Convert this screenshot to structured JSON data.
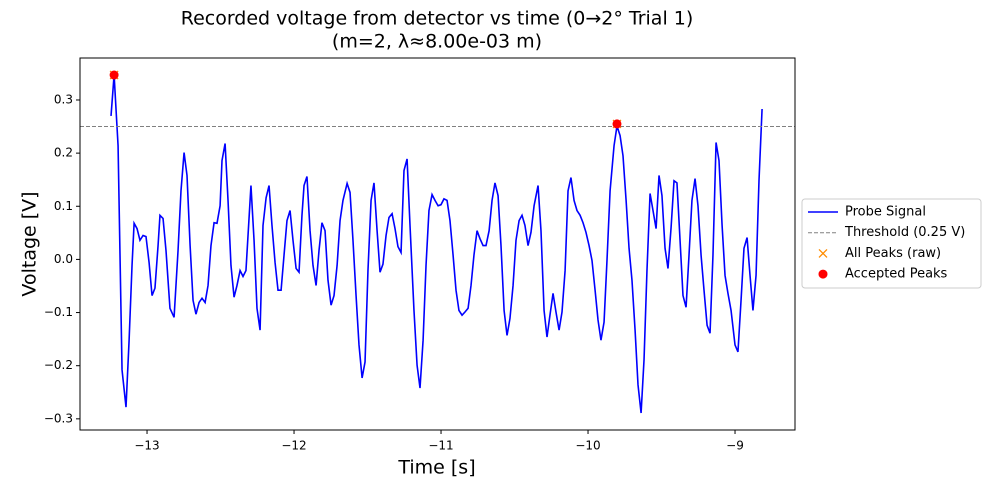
{
  "chart_data": {
    "type": "line",
    "title": [
      "Recorded voltage from detector vs time (0→2° Trial 1)",
      "(m=2, λ≈8.00e-03 m)"
    ],
    "xlabel": "Time [s]",
    "ylabel": "Voltage [V]",
    "xlim": [
      -13.456,
      -8.592
    ],
    "ylim": [
      -0.321,
      0.379
    ],
    "xticks": [
      {
        "value": -13,
        "label": "−13"
      },
      {
        "value": -12,
        "label": "−12"
      },
      {
        "value": -11,
        "label": "−11"
      },
      {
        "value": -10,
        "label": "−10"
      },
      {
        "value": -9,
        "label": "−9"
      }
    ],
    "yticks": [
      {
        "value": -0.3,
        "label": "−0.3"
      },
      {
        "value": -0.2,
        "label": "−0.2"
      },
      {
        "value": -0.1,
        "label": "−0.1"
      },
      {
        "value": 0.0,
        "label": "0.0"
      },
      0.1,
      0.2,
      0.3
    ],
    "legend": "right",
    "series": [
      {
        "name": "Probe Signal",
        "color": "#0000ff",
        "style": "line",
        "x": [
          -13.245,
          -13.224,
          -13.197,
          -13.17,
          -13.143,
          -13.122,
          -13.102,
          -13.088,
          -13.068,
          -13.048,
          -13.027,
          -13.007,
          -12.986,
          -12.966,
          -12.946,
          -12.925,
          -12.912,
          -12.891,
          -12.871,
          -12.844,
          -12.816,
          -12.789,
          -12.769,
          -12.748,
          -12.728,
          -12.707,
          -12.687,
          -12.667,
          -12.646,
          -12.626,
          -12.605,
          -12.585,
          -12.565,
          -12.544,
          -12.524,
          -12.503,
          -12.49,
          -12.469,
          -12.449,
          -12.429,
          -12.408,
          -12.388,
          -12.367,
          -12.347,
          -12.327,
          -12.293,
          -12.272,
          -12.252,
          -12.231,
          -12.211,
          -12.19,
          -12.17,
          -12.15,
          -12.129,
          -12.109,
          -12.088,
          -12.068,
          -12.048,
          -12.027,
          -12.007,
          -11.986,
          -11.966,
          -11.946,
          -11.932,
          -11.912,
          -11.891,
          -11.871,
          -11.85,
          -11.83,
          -11.81,
          -11.789,
          -11.769,
          -11.748,
          -11.728,
          -11.707,
          -11.687,
          -11.667,
          -11.639,
          -11.619,
          -11.599,
          -11.578,
          -11.558,
          -11.537,
          -11.517,
          -11.497,
          -11.476,
          -11.456,
          -11.435,
          -11.415,
          -11.395,
          -11.374,
          -11.354,
          -11.333,
          -11.313,
          -11.293,
          -11.272,
          -11.252,
          -11.231,
          -11.211,
          -11.184,
          -11.163,
          -11.143,
          -11.122,
          -11.102,
          -11.082,
          -11.061,
          -11.041,
          -11.02,
          -11.0,
          -10.98,
          -10.959,
          -10.939,
          -10.918,
          -10.898,
          -10.878,
          -10.857,
          -10.837,
          -10.816,
          -10.796,
          -10.776,
          -10.755,
          -10.735,
          -10.714,
          -10.694,
          -10.673,
          -10.653,
          -10.633,
          -10.612,
          -10.592,
          -10.571,
          -10.551,
          -10.531,
          -10.51,
          -10.49,
          -10.469,
          -10.449,
          -10.429,
          -10.408,
          -10.388,
          -10.367,
          -10.34,
          -10.32,
          -10.299,
          -10.279,
          -10.259,
          -10.238,
          -10.218,
          -10.197,
          -10.177,
          -10.156,
          -10.136,
          -10.116,
          -10.095,
          -10.075,
          -10.054,
          -10.034,
          -10.014,
          -9.993,
          -9.973,
          -9.952,
          -9.932,
          -9.912,
          -9.891,
          -9.871,
          -9.85,
          -9.823,
          -9.803,
          -9.782,
          -9.762,
          -9.741,
          -9.721,
          -9.701,
          -9.68,
          -9.66,
          -9.639,
          -9.619,
          -9.599,
          -9.578,
          -9.558,
          -9.537,
          -9.517,
          -9.497,
          -9.476,
          -9.456,
          -9.435,
          -9.415,
          -9.395,
          -9.374,
          -9.354,
          -9.333,
          -9.313,
          -9.293,
          -9.272,
          -9.252,
          -9.231,
          -9.211,
          -9.19,
          -9.17,
          -9.15,
          -9.129,
          -9.109,
          -9.088,
          -9.068,
          -9.048,
          -9.027,
          -9.0,
          -8.98,
          -8.959,
          -8.939,
          -8.918,
          -8.898,
          -8.878,
          -8.857,
          -8.837,
          -8.816
        ],
        "values": [
          0.27,
          0.347,
          0.214,
          -0.208,
          -0.278,
          -0.152,
          -0.011,
          0.068,
          0.058,
          0.036,
          0.045,
          0.043,
          -0.006,
          -0.068,
          -0.054,
          0.026,
          0.083,
          0.077,
          0.017,
          -0.092,
          -0.109,
          0.017,
          0.129,
          0.201,
          0.158,
          0.026,
          -0.077,
          -0.103,
          -0.081,
          -0.073,
          -0.081,
          -0.049,
          0.026,
          0.069,
          0.068,
          0.101,
          0.186,
          0.218,
          0.111,
          -0.011,
          -0.071,
          -0.049,
          -0.021,
          -0.032,
          -0.021,
          0.139,
          0.036,
          -0.092,
          -0.133,
          0.064,
          0.116,
          0.139,
          0.064,
          -0.006,
          -0.058,
          -0.058,
          0.008,
          0.073,
          0.092,
          0.036,
          -0.017,
          -0.024,
          0.083,
          0.139,
          0.156,
          0.054,
          -0.011,
          -0.049,
          0.017,
          0.069,
          0.054,
          -0.039,
          -0.086,
          -0.068,
          -0.011,
          0.073,
          0.111,
          0.143,
          0.126,
          0.036,
          -0.068,
          -0.161,
          -0.223,
          -0.193,
          -0.021,
          0.111,
          0.144,
          0.054,
          -0.024,
          -0.009,
          0.045,
          0.079,
          0.086,
          0.058,
          0.024,
          0.013,
          0.167,
          0.189,
          0.064,
          -0.096,
          -0.199,
          -0.242,
          -0.152,
          -0.011,
          0.092,
          0.122,
          0.111,
          0.101,
          0.103,
          0.114,
          0.111,
          0.073,
          0.008,
          -0.058,
          -0.096,
          -0.105,
          -0.099,
          -0.092,
          -0.049,
          0.008,
          0.054,
          0.039,
          0.026,
          0.026,
          0.054,
          0.111,
          0.144,
          0.12,
          0.026,
          -0.096,
          -0.143,
          -0.111,
          -0.049,
          0.036,
          0.073,
          0.083,
          0.064,
          0.026,
          0.051,
          0.101,
          0.139,
          0.054,
          -0.096,
          -0.146,
          -0.105,
          -0.064,
          -0.099,
          -0.133,
          -0.099,
          -0.021,
          0.129,
          0.154,
          0.111,
          0.092,
          0.083,
          0.069,
          0.051,
          0.026,
          -0.002,
          -0.058,
          -0.114,
          -0.152,
          -0.118,
          -0.002,
          0.129,
          0.214,
          0.251,
          0.233,
          0.195,
          0.111,
          0.021,
          -0.039,
          -0.133,
          -0.236,
          -0.289,
          -0.189,
          -0.021,
          0.124,
          0.092,
          0.058,
          0.158,
          0.12,
          0.021,
          -0.017,
          0.06,
          0.148,
          0.144,
          0.036,
          -0.068,
          -0.09,
          0.008,
          0.111,
          0.152,
          0.101,
          0.008,
          -0.058,
          -0.124,
          -0.139,
          0.008,
          0.22,
          0.186,
          0.064,
          -0.03,
          -0.064,
          -0.096,
          -0.161,
          -0.174,
          -0.077,
          0.021,
          0.041,
          -0.03,
          -0.096,
          -0.03,
          0.148,
          0.283
        ]
      },
      {
        "name": "Threshold (0.25 V)",
        "color": "#808080",
        "style": "hline",
        "values": [
          0.25
        ]
      },
      {
        "name": "All Peaks (raw)",
        "color": "#ff8c00",
        "style": "x",
        "x": [
          -13.224,
          -9.803
        ],
        "values": [
          0.347,
          0.255
        ]
      },
      {
        "name": "Accepted Peaks",
        "color": "#ff0000",
        "style": "dot",
        "x": [
          -13.224,
          -9.803
        ],
        "values": [
          0.347,
          0.255
        ]
      }
    ]
  }
}
